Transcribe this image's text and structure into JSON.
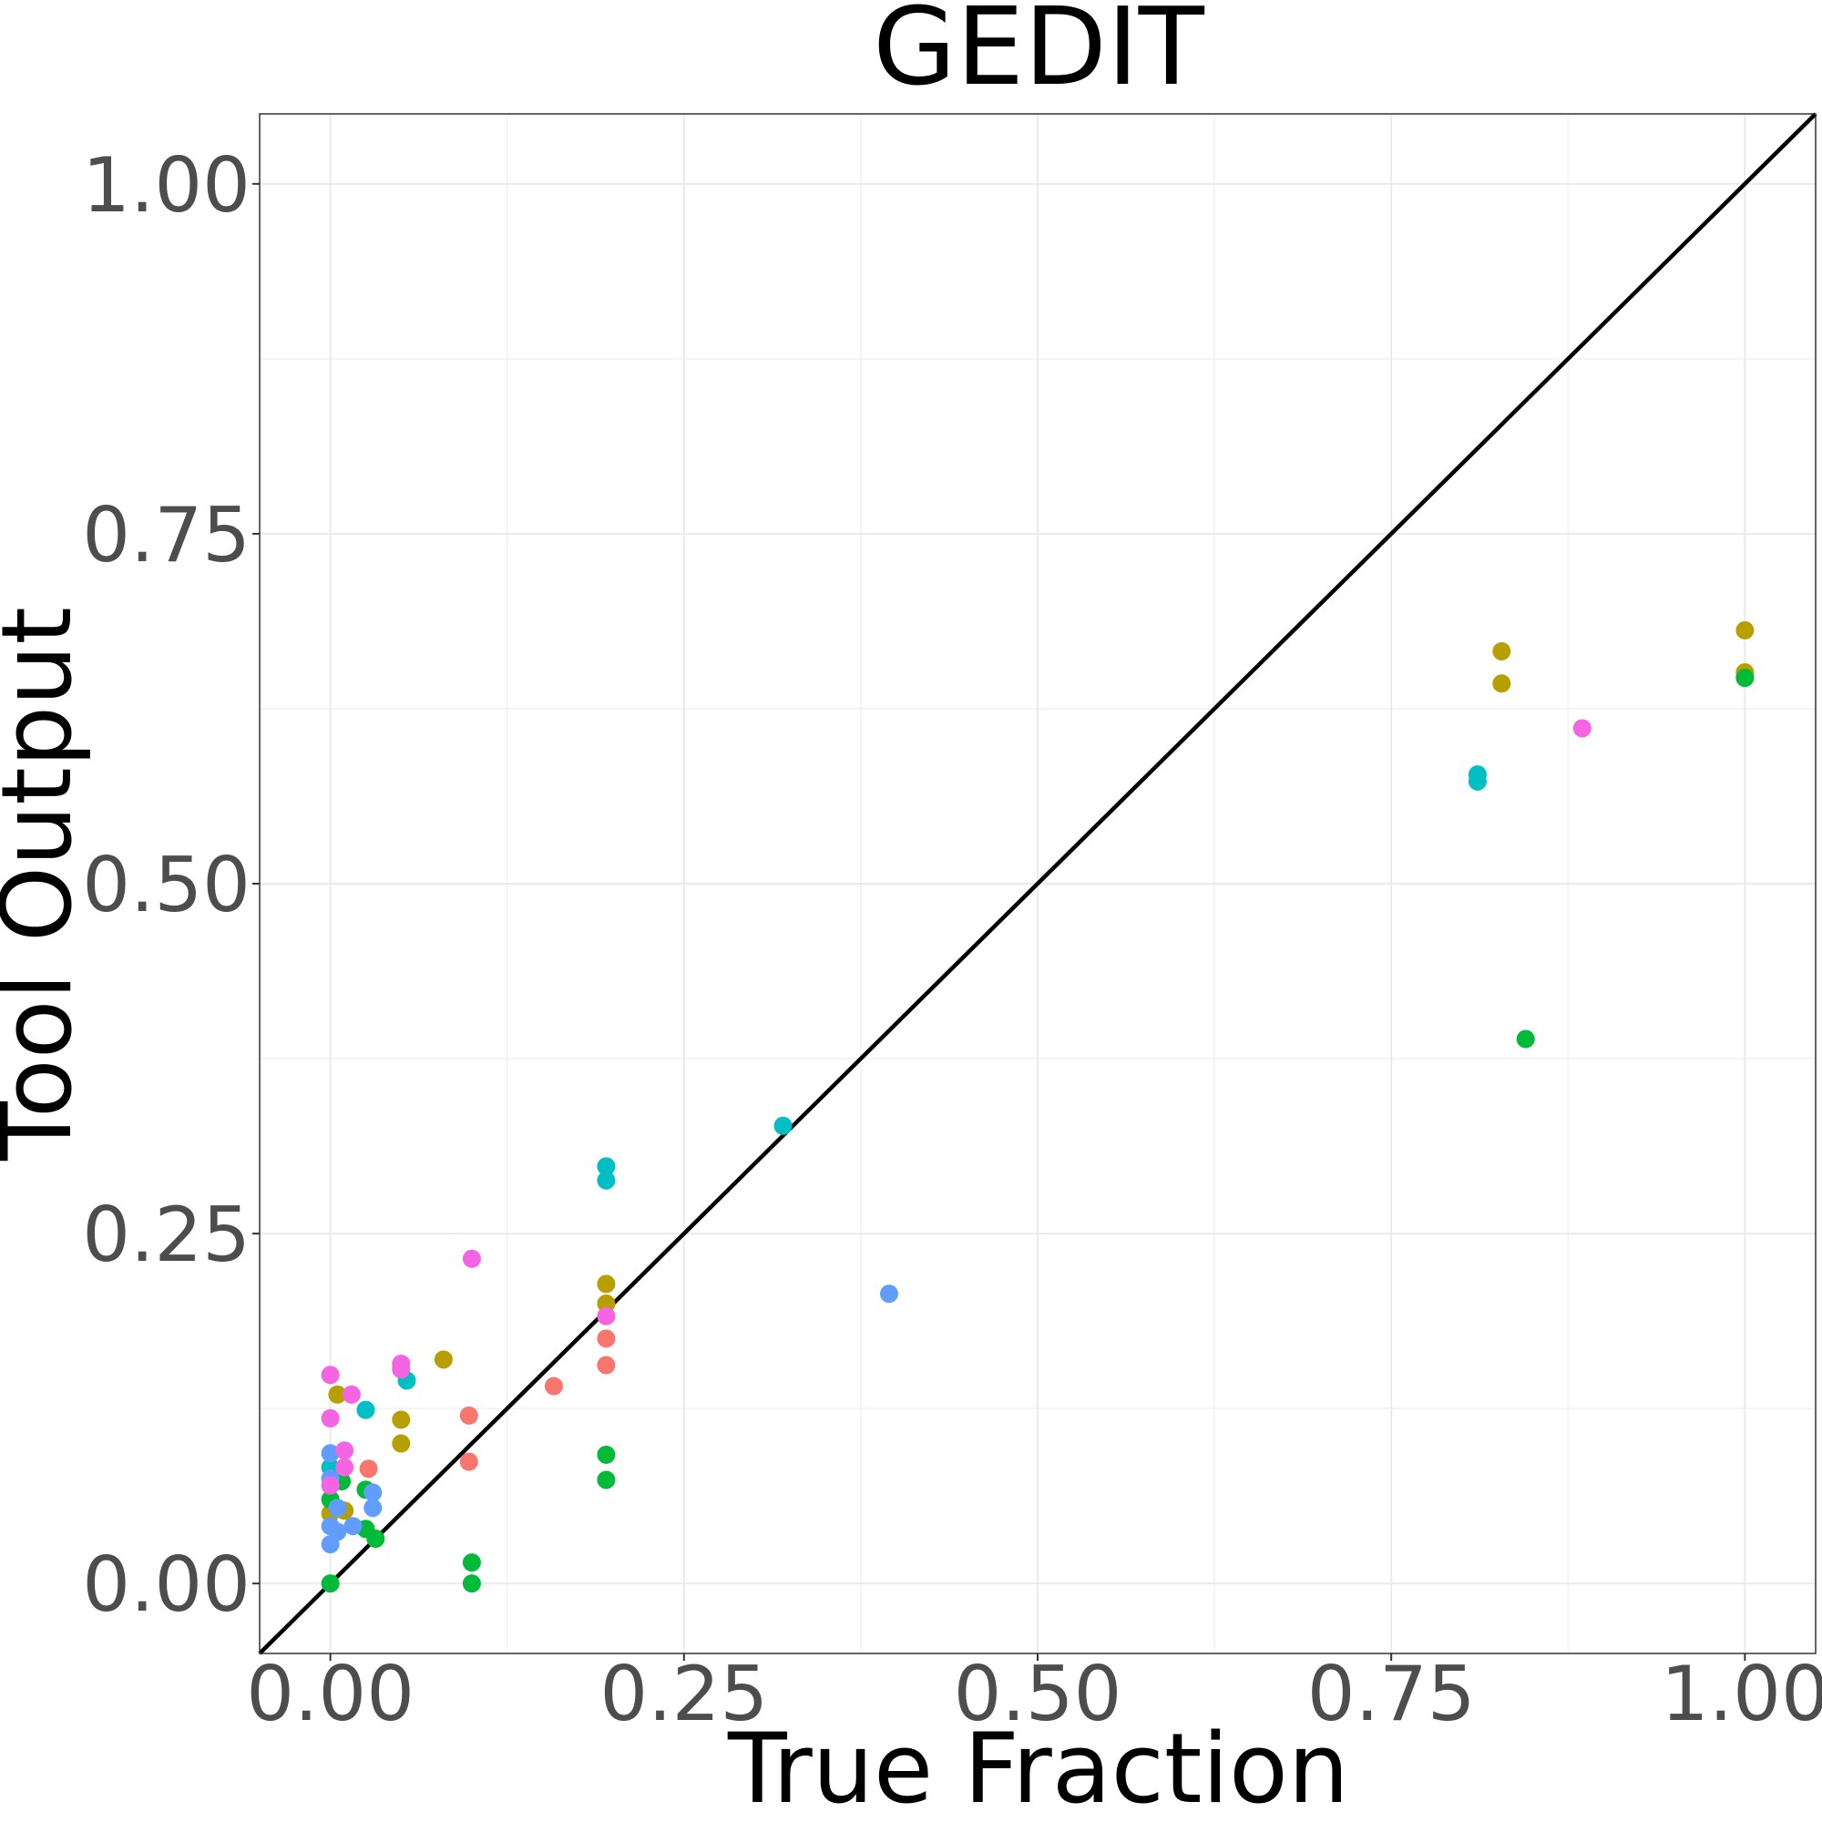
{
  "chart_data": {
    "type": "scatter",
    "title": "GEDIT",
    "xlabel": "True Fraction",
    "ylabel": "Tool Output",
    "xlim": [
      -0.05,
      1.05
    ],
    "ylim": [
      -0.05,
      1.05
    ],
    "x_ticks": [
      "0.00",
      "0.25",
      "0.50",
      "0.75",
      "1.00"
    ],
    "y_ticks": [
      "0.00",
      "0.25",
      "0.50",
      "0.75",
      "1.00"
    ],
    "grid": true,
    "legend": "none",
    "reference_line": "y = x",
    "series": [
      {
        "color": "#F8766D",
        "points": [
          [
            0.027,
            0.082
          ],
          [
            0.098,
            0.12
          ],
          [
            0.098,
            0.087
          ],
          [
            0.158,
            0.141
          ],
          [
            0.195,
            0.175
          ],
          [
            0.195,
            0.156
          ]
        ]
      },
      {
        "color": "#B79F00",
        "points": [
          [
            0.0,
            0.05
          ],
          [
            0.005,
            0.135
          ],
          [
            0.01,
            0.052
          ],
          [
            0.05,
            0.117
          ],
          [
            0.05,
            0.1
          ],
          [
            0.08,
            0.16
          ],
          [
            0.195,
            0.214
          ],
          [
            0.195,
            0.2
          ],
          [
            0.828,
            0.666
          ],
          [
            0.828,
            0.643
          ],
          [
            1.0,
            0.681
          ],
          [
            1.0,
            0.651
          ]
        ]
      },
      {
        "color": "#00BA38",
        "points": [
          [
            0.0,
            0.0
          ],
          [
            0.0,
            0.06
          ],
          [
            0.008,
            0.073
          ],
          [
            0.025,
            0.067
          ],
          [
            0.025,
            0.039
          ],
          [
            0.032,
            0.032
          ],
          [
            0.1,
            0.015
          ],
          [
            0.1,
            0.0
          ],
          [
            0.195,
            0.092
          ],
          [
            0.195,
            0.074
          ],
          [
            0.845,
            0.389
          ],
          [
            1.0,
            0.647
          ]
        ]
      },
      {
        "color": "#00BFC4",
        "points": [
          [
            0.0,
            0.083
          ],
          [
            0.025,
            0.124
          ],
          [
            0.054,
            0.145
          ],
          [
            0.195,
            0.298
          ],
          [
            0.195,
            0.288
          ],
          [
            0.32,
            0.327
          ],
          [
            0.811,
            0.578
          ],
          [
            0.811,
            0.573
          ]
        ]
      },
      {
        "color": "#619CFF",
        "points": [
          [
            0.0,
            0.093
          ],
          [
            0.0,
            0.075
          ],
          [
            0.0,
            0.041
          ],
          [
            0.0,
            0.028
          ],
          [
            0.005,
            0.054
          ],
          [
            0.005,
            0.037
          ],
          [
            0.016,
            0.041
          ],
          [
            0.03,
            0.065
          ],
          [
            0.03,
            0.054
          ],
          [
            0.395,
            0.207
          ]
        ]
      },
      {
        "color": "#F564E3",
        "points": [
          [
            0.0,
            0.149
          ],
          [
            0.0,
            0.118
          ],
          [
            0.0,
            0.07
          ],
          [
            0.01,
            0.095
          ],
          [
            0.01,
            0.083
          ],
          [
            0.015,
            0.135
          ],
          [
            0.05,
            0.157
          ],
          [
            0.05,
            0.153
          ],
          [
            0.1,
            0.232
          ],
          [
            0.195,
            0.191
          ],
          [
            0.885,
            0.611
          ]
        ]
      }
    ]
  }
}
